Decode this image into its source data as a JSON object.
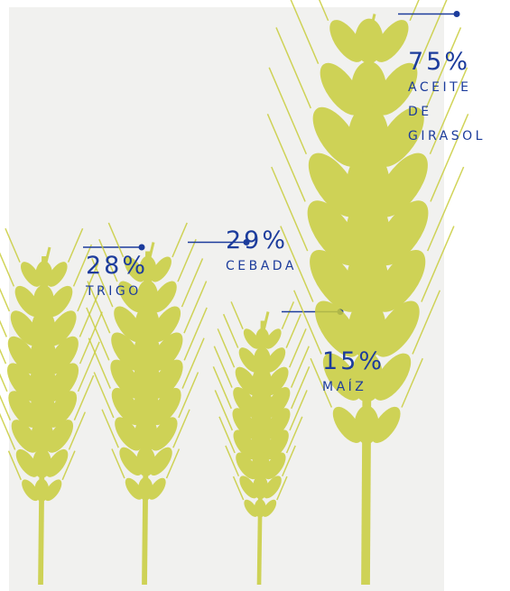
{
  "chart_data": {
    "type": "pictogram",
    "categories": [
      "TRIGO",
      "CEBADA",
      "MAÍZ",
      "ACEITE DE GIRASOL"
    ],
    "values": [
      28,
      29,
      15,
      75
    ],
    "value_labels": [
      "28%",
      "29%",
      "15%",
      "75%"
    ],
    "color": "#c9cd3c",
    "label_color": "#1c3c9c"
  }
}
